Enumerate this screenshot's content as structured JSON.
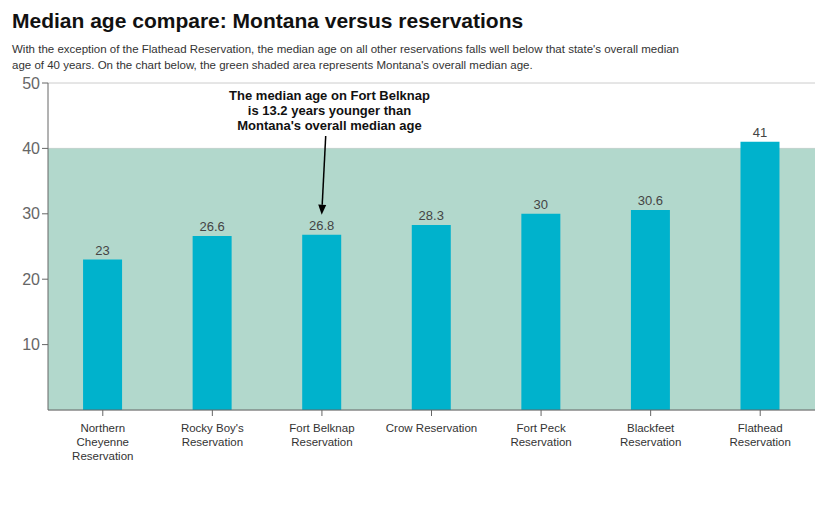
{
  "chart_data": {
    "type": "bar",
    "title": "Median age compare: Montana versus reservations",
    "subtitle": "With the exception of the Flathead Reservation, the median age on all other reservations falls well below that state's overall median\nage of 40 years. On the chart below, the green shaded area represents Montana's overall median age.",
    "categories": [
      "Northern\nCheyenne\nReservation",
      "Rocky Boy's\nReservation",
      "Fort Belknap\nReservation",
      "Crow Reservation",
      "Fort Peck\nReservation",
      "Blackfeet\nReservation",
      "Flathead\nReservation"
    ],
    "values": [
      23,
      26.6,
      26.8,
      28.3,
      30,
      30.6,
      41
    ],
    "color": "#00b2cc",
    "ylim": [
      0,
      50
    ],
    "yticks": [
      10,
      20,
      30,
      40,
      50
    ],
    "grid": true,
    "data_labels": true,
    "band": {
      "from": 0,
      "to": 40,
      "color": "#b2d8cc"
    },
    "annotation": {
      "text": "The median age on Fort Belknap\nis 13.2 years younger than\nMontana's overall median age",
      "category": "Fort Belknap\nReservation"
    }
  }
}
